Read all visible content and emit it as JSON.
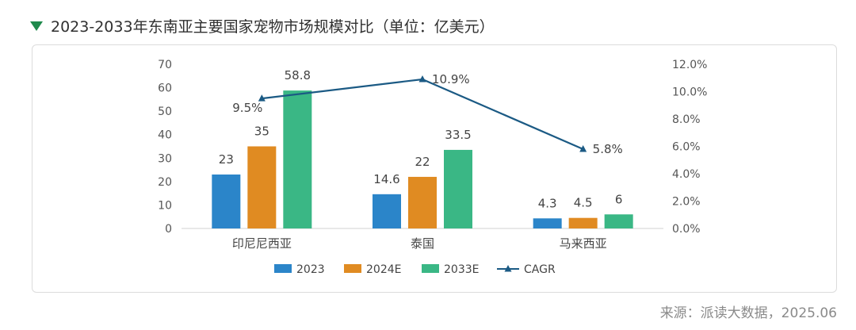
{
  "header": {
    "title": "2023-2033年东南亚主要国家宠物市场规模对比（单位：亿美元）"
  },
  "source": "来源：派读大数据，2025.06",
  "colors": {
    "s2023": "#2b85c9",
    "s2024": "#e08b22",
    "s2033": "#3ab785",
    "cagr": "#1b5a84",
    "title_triangle": "#1f8a4c"
  },
  "chart_data": {
    "type": "bar",
    "categories": [
      "印尼尼西亚",
      "泰国",
      "马来西亚"
    ],
    "series": [
      {
        "name": "2023",
        "values": [
          23,
          14.6,
          4.3
        ]
      },
      {
        "name": "2024E",
        "values": [
          35,
          22,
          4.5
        ]
      },
      {
        "name": "2033E",
        "values": [
          58.8,
          33.5,
          6
        ]
      }
    ],
    "line_series": {
      "name": "CAGR",
      "values": [
        9.5,
        10.9,
        5.8
      ],
      "labels": [
        "9.5%",
        "10.9%",
        "5.8%"
      ],
      "axis": "right"
    },
    "y_left": {
      "ylim": [
        0,
        70
      ],
      "ticks": [
        "0",
        "10",
        "20",
        "30",
        "40",
        "50",
        "60",
        "70"
      ]
    },
    "y_right": {
      "ylim": [
        0,
        12
      ],
      "ticks": [
        "0.0%",
        "2.0%",
        "4.0%",
        "6.0%",
        "8.0%",
        "10.0%",
        "12.0%"
      ]
    },
    "data_labels": [
      [
        "23",
        "14.6",
        "4.3"
      ],
      [
        "35",
        "22",
        "4.5"
      ],
      [
        "58.8",
        "33.5",
        "6"
      ]
    ],
    "legend": {
      "position": "bottom",
      "entries": [
        "2023",
        "2024E",
        "2033E",
        "CAGR"
      ]
    },
    "grid": false
  }
}
